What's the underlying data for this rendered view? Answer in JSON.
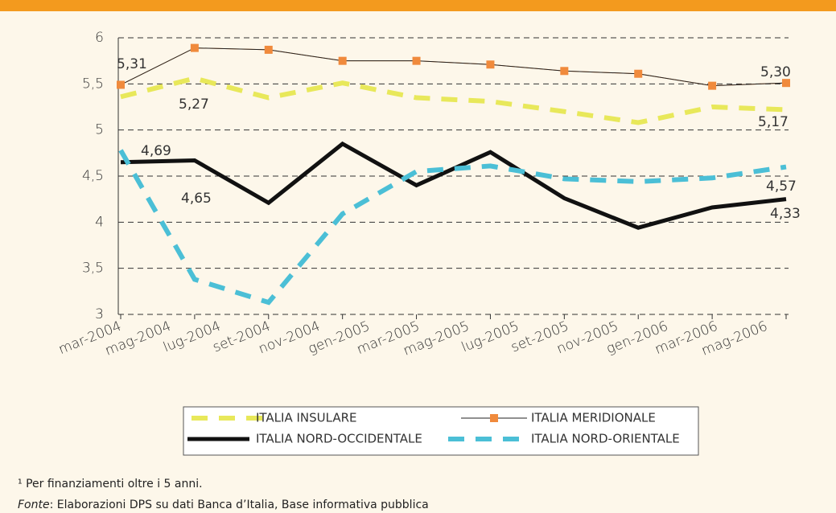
{
  "chart_data": {
    "type": "line",
    "x_tick_labels": [
      "mar-2004",
      "mag-2004",
      "lug-2004",
      "set-2004",
      "nov-2004",
      "gen-2005",
      "mar-2005",
      "mag-2005",
      "lug-2005",
      "set-2005",
      "nov-2005",
      "gen-2006",
      "mar-2006",
      "mag-2006"
    ],
    "series": [
      {
        "name": "ITALIA INSULARE",
        "color": "#e8e85a",
        "style": "dashed",
        "values": [
          5.36,
          5.56,
          5.35,
          5.51,
          5.35,
          5.31,
          5.2,
          5.08,
          5.25,
          5.22
        ]
      },
      {
        "name": "ITALIA MERIDIONALE",
        "color": "#f08a3c",
        "style": "thin-marker",
        "values": [
          5.49,
          5.89,
          5.87,
          5.75,
          5.75,
          5.71,
          5.64,
          5.61,
          5.48,
          5.51
        ]
      },
      {
        "name": "ITALIA NORD-OCCIDENTALE",
        "color": "#111111",
        "style": "thick",
        "values": [
          4.65,
          4.67,
          4.21,
          4.85,
          4.4,
          4.76,
          4.26,
          3.94,
          4.16,
          4.25
        ]
      },
      {
        "name": "ITALIA NORD-ORIENTALE",
        "color": "#4bbfd6",
        "style": "dashed",
        "values": [
          4.78,
          3.38,
          3.13,
          4.09,
          4.55,
          4.61,
          4.47,
          4.44,
          4.48,
          4.6
        ]
      }
    ],
    "annotations": [
      "5,31",
      "5,27",
      "5,30",
      "5,17",
      "4,69",
      "4,65",
      "4,57",
      "4,33"
    ],
    "ylim": [
      3,
      6
    ],
    "yticks": [
      3,
      {
        "value": 3.5,
        "label": "3,5"
      },
      4,
      {
        "value": 4.5,
        "label": "4,5"
      },
      5,
      {
        "value": 5.5,
        "label": "5,5"
      },
      6
    ],
    "grid": true,
    "footnote": "¹ Per finanziamenti oltre i 5 anni.",
    "source_label": "Fonte",
    "source_text": ": Elaborazioni DPS su dati Banca d’Italia, Base informativa pubblica"
  }
}
